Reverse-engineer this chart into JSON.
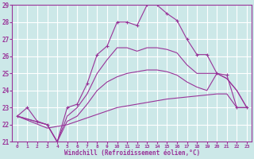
{
  "xlabel": "Windchill (Refroidissement éolien,°C)",
  "xlim": [
    -0.5,
    23.5
  ],
  "ylim": [
    21,
    29
  ],
  "yticks": [
    21,
    22,
    23,
    24,
    25,
    26,
    27,
    28,
    29
  ],
  "xticks": [
    0,
    1,
    2,
    3,
    4,
    5,
    6,
    7,
    8,
    9,
    10,
    11,
    12,
    13,
    14,
    15,
    16,
    17,
    18,
    19,
    20,
    21,
    22,
    23
  ],
  "bg_color": "#cce8e8",
  "grid_color": "#ffffff",
  "line_color": "#993399",
  "lines": [
    {
      "x": [
        0,
        1,
        2,
        3,
        4,
        5,
        6,
        7,
        8,
        9,
        10,
        11,
        12,
        13,
        14,
        15,
        16,
        17,
        18,
        19,
        20,
        21,
        22,
        23
      ],
      "y": [
        22.5,
        23.0,
        22.2,
        22.0,
        21.0,
        23.0,
        23.2,
        24.4,
        26.1,
        26.6,
        28.0,
        28.0,
        27.8,
        29.0,
        29.0,
        28.5,
        28.1,
        27.0,
        26.1,
        26.1,
        25.0,
        24.9,
        23.0,
        23.0
      ],
      "marker": "+"
    },
    {
      "x": [
        0,
        3,
        4,
        5,
        6,
        7,
        8,
        9,
        10,
        11,
        12,
        13,
        14,
        15,
        16,
        17,
        18,
        19,
        20,
        21,
        22,
        23
      ],
      "y": [
        22.5,
        22.0,
        21.0,
        22.5,
        23.0,
        23.8,
        25.0,
        25.8,
        26.5,
        26.5,
        26.3,
        26.5,
        26.5,
        26.4,
        26.2,
        25.5,
        25.0,
        25.0,
        25.0,
        24.7,
        24.0,
        23.0
      ],
      "marker": null
    },
    {
      "x": [
        0,
        3,
        4,
        5,
        6,
        7,
        8,
        9,
        10,
        11,
        12,
        13,
        14,
        15,
        16,
        17,
        18,
        19,
        20,
        21,
        22,
        23
      ],
      "y": [
        22.5,
        22.0,
        21.0,
        22.2,
        22.5,
        23.2,
        24.0,
        24.5,
        24.8,
        25.0,
        25.1,
        25.2,
        25.2,
        25.1,
        24.9,
        24.5,
        24.2,
        24.0,
        25.0,
        24.7,
        24.0,
        23.0
      ],
      "marker": null
    },
    {
      "x": [
        0,
        3,
        5,
        10,
        15,
        20,
        21,
        22,
        23
      ],
      "y": [
        22.5,
        21.8,
        22.0,
        23.0,
        23.5,
        23.8,
        23.8,
        23.0,
        23.0
      ],
      "marker": null
    }
  ]
}
